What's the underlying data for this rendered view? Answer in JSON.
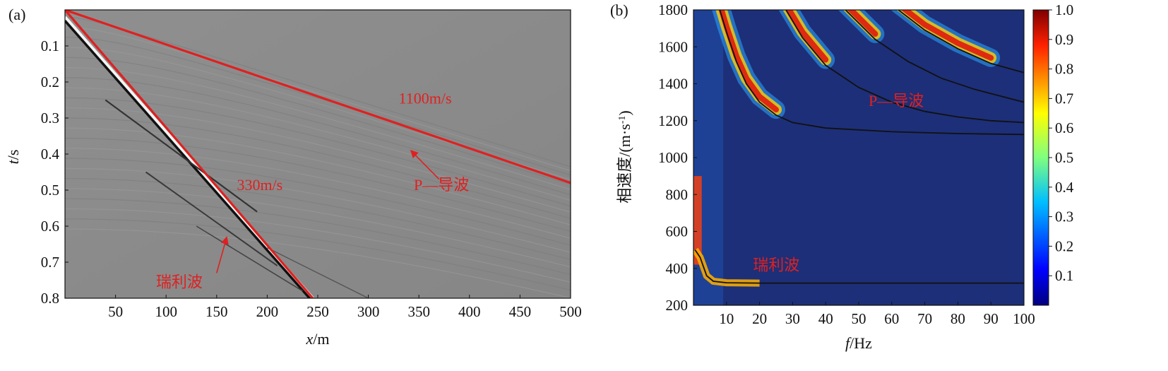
{
  "colors": {
    "annotation_red": "#e02020",
    "seismogram_bg": "#8a8a8a",
    "spectrum_bg": "#1d2f78"
  },
  "chart_data": [
    {
      "panel_label": "(a)",
      "type": "scatter",
      "description_kind": "seismogram",
      "xlabel_italic": "x",
      "xlabel_unit": "/m",
      "ylabel_italic": "t",
      "ylabel_unit": "/s",
      "xlim": [
        0,
        500
      ],
      "ylim": [
        0,
        0.8
      ],
      "y_inverted": true,
      "xticks": [
        50,
        100,
        150,
        200,
        250,
        300,
        350,
        400,
        450,
        500
      ],
      "yticks": [
        0.1,
        0.2,
        0.3,
        0.4,
        0.5,
        0.6,
        0.7,
        0.8
      ],
      "velocity_lines": [
        {
          "label": "1100m/s",
          "x": [
            0,
            500
          ],
          "t": [
            0,
            0.48
          ]
        },
        {
          "label": "330m/s",
          "x": [
            0,
            245
          ],
          "t": [
            0,
            0.8
          ]
        }
      ],
      "annotations": [
        {
          "text": "1100m/s",
          "x": 330,
          "t": 0.26
        },
        {
          "text": "330m/s",
          "x": 170,
          "t": 0.5
        },
        {
          "text": "P—导波",
          "x": 345,
          "t": 0.5
        },
        {
          "text": "瑞利波",
          "x": 90,
          "t": 0.77
        }
      ],
      "arrows": [
        {
          "from": [
            370,
            0.47
          ],
          "to": [
            342,
            0.39
          ]
        },
        {
          "from": [
            150,
            0.73
          ],
          "to": [
            160,
            0.63
          ]
        }
      ]
    },
    {
      "panel_label": "(b)",
      "type": "heatmap",
      "xlabel_italic": "f",
      "xlabel_unit": "/Hz",
      "ylabel": "相速度/(m·s",
      "ylabel_sup": "-1",
      "ylabel_end": ")",
      "xlim": [
        0,
        100
      ],
      "ylim": [
        200,
        1800
      ],
      "xticks": [
        10,
        20,
        30,
        40,
        50,
        60,
        70,
        80,
        90,
        100
      ],
      "yticks": [
        200,
        400,
        600,
        800,
        1000,
        1200,
        1400,
        1600,
        1800
      ],
      "colorbar": {
        "min": 0,
        "max": 1.0,
        "ticks": [
          "0.1",
          "0.2",
          "0.3",
          "0.4",
          "0.5",
          "0.6",
          "0.7",
          "0.8",
          "0.9",
          "1.0"
        ]
      },
      "dispersion_curves": [
        {
          "name": "rayleigh",
          "points": [
            [
              0.5,
              500
            ],
            [
              2,
              460
            ],
            [
              4,
              360
            ],
            [
              6,
              330
            ],
            [
              10,
              322
            ],
            [
              20,
              320
            ],
            [
              100,
              320
            ]
          ]
        },
        {
          "name": "guided-1",
          "points": [
            [
              8,
              1800
            ],
            [
              10,
              1680
            ],
            [
              13,
              1520
            ],
            [
              16,
              1400
            ],
            [
              20,
              1300
            ],
            [
              25,
              1230
            ],
            [
              30,
              1190
            ],
            [
              40,
              1160
            ],
            [
              60,
              1140
            ],
            [
              80,
              1130
            ],
            [
              100,
              1125
            ]
          ]
        },
        {
          "name": "guided-2",
          "points": [
            [
              28,
              1800
            ],
            [
              33,
              1650
            ],
            [
              40,
              1500
            ],
            [
              50,
              1380
            ],
            [
              60,
              1300
            ],
            [
              70,
              1250
            ],
            [
              80,
              1220
            ],
            [
              90,
              1200
            ],
            [
              100,
              1190
            ]
          ]
        },
        {
          "name": "guided-3",
          "points": [
            [
              46,
              1800
            ],
            [
              55,
              1640
            ],
            [
              65,
              1520
            ],
            [
              75,
              1430
            ],
            [
              85,
              1370
            ],
            [
              100,
              1300
            ]
          ]
        },
        {
          "name": "guided-4",
          "points": [
            [
              62,
              1800
            ],
            [
              70,
              1690
            ],
            [
              80,
              1590
            ],
            [
              90,
              1510
            ],
            [
              100,
              1460
            ]
          ]
        }
      ],
      "annotations": [
        {
          "text": "P—导波",
          "f": 53,
          "v": 1280
        },
        {
          "text": "瑞利波",
          "f": 18,
          "v": 390
        }
      ]
    }
  ]
}
